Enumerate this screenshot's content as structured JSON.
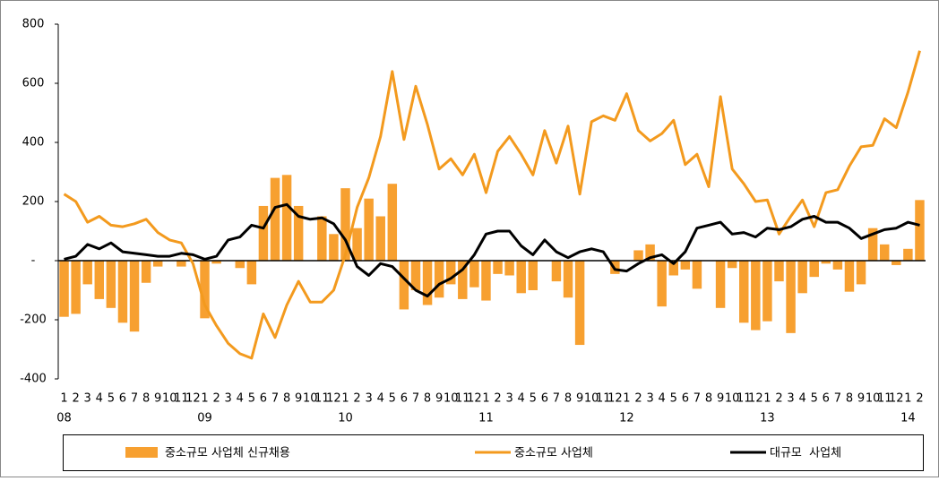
{
  "chart_data": {
    "type": "bar",
    "categories": [
      "1",
      "2",
      "3",
      "4",
      "5",
      "6",
      "7",
      "8",
      "9",
      "10",
      "11",
      "12",
      "1",
      "2",
      "3",
      "4",
      "5",
      "6",
      "7",
      "8",
      "9",
      "10",
      "11",
      "12",
      "1",
      "2",
      "3",
      "4",
      "5",
      "6",
      "7",
      "8",
      "9",
      "10",
      "11",
      "12",
      "1",
      "2",
      "3",
      "4",
      "5",
      "6",
      "7",
      "8",
      "9",
      "10",
      "11",
      "12",
      "1",
      "2",
      "3",
      "4",
      "5",
      "6",
      "7",
      "8",
      "9",
      "10",
      "11",
      "12",
      "1",
      "2",
      "3",
      "4",
      "5",
      "6",
      "7",
      "8",
      "9",
      "10",
      "11",
      "12",
      "1",
      "2"
    ],
    "years": [
      "08",
      null,
      null,
      null,
      null,
      null,
      null,
      null,
      null,
      null,
      null,
      null,
      "09",
      null,
      null,
      null,
      null,
      null,
      null,
      null,
      null,
      null,
      null,
      null,
      "10",
      null,
      null,
      null,
      null,
      null,
      null,
      null,
      null,
      null,
      null,
      null,
      "11",
      null,
      null,
      null,
      null,
      null,
      null,
      null,
      null,
      null,
      null,
      null,
      "12",
      null,
      null,
      null,
      null,
      null,
      null,
      null,
      null,
      null,
      null,
      null,
      "13",
      null,
      null,
      null,
      null,
      null,
      null,
      null,
      null,
      null,
      null,
      null,
      "14",
      null
    ],
    "series": [
      {
        "name": "중소규모 사업체 신규채용",
        "type": "bar",
        "color": "#f7a030",
        "values": [
          -190,
          -180,
          -80,
          -130,
          -160,
          -210,
          -240,
          -75,
          -20,
          0,
          -20,
          0,
          -195,
          -10,
          0,
          -25,
          -80,
          185,
          280,
          290,
          185,
          0,
          150,
          90,
          245,
          110,
          210,
          150,
          260,
          -165,
          -100,
          -150,
          -125,
          -80,
          -130,
          -90,
          -135,
          -45,
          -50,
          -110,
          -100,
          0,
          -70,
          -125,
          -285,
          0,
          0,
          -45,
          0,
          35,
          55,
          -155,
          -50,
          -30,
          -95,
          0,
          -160,
          -25,
          -210,
          -235,
          -205,
          -70,
          -245,
          -110,
          -55,
          -10,
          -30,
          -105,
          -80,
          110,
          55,
          -15,
          40,
          205
        ]
      },
      {
        "name": "중소규모 사업체",
        "type": "line",
        "color": "#f39a1e",
        "values": [
          225,
          200,
          130,
          150,
          120,
          115,
          125,
          140,
          95,
          70,
          60,
          -10,
          -150,
          -220,
          -280,
          -315,
          -330,
          -180,
          -260,
          -150,
          -70,
          -140,
          -140,
          -100,
          20,
          180,
          280,
          420,
          640,
          410,
          590,
          460,
          310,
          345,
          290,
          360,
          230,
          370,
          420,
          360,
          290,
          440,
          330,
          455,
          225,
          470,
          490,
          475,
          565,
          440,
          405,
          430,
          475,
          325,
          360,
          250,
          555,
          310,
          260,
          200,
          205,
          90,
          150,
          205,
          115,
          230,
          240,
          320,
          385,
          390,
          480,
          450,
          570,
          710
        ]
      },
      {
        "name": "대규모  사업체",
        "type": "line",
        "color": "#000000",
        "values": [
          5,
          15,
          55,
          40,
          60,
          30,
          25,
          20,
          15,
          15,
          25,
          20,
          5,
          15,
          70,
          80,
          120,
          110,
          180,
          190,
          150,
          140,
          145,
          125,
          70,
          -20,
          -50,
          -10,
          -20,
          -60,
          -100,
          -120,
          -80,
          -60,
          -30,
          20,
          90,
          100,
          100,
          50,
          20,
          70,
          30,
          10,
          30,
          40,
          30,
          -30,
          -35,
          -10,
          10,
          20,
          -10,
          30,
          110,
          120,
          130,
          90,
          95,
          80,
          110,
          105,
          115,
          140,
          150,
          130,
          130,
          110,
          75,
          90,
          105,
          110,
          130,
          120
        ]
      }
    ],
    "ylim": [
      -400,
      800
    ],
    "yticks": [
      -400,
      -200,
      {
        "value": 0,
        "label": "-"
      },
      200,
      400,
      600,
      800
    ]
  }
}
